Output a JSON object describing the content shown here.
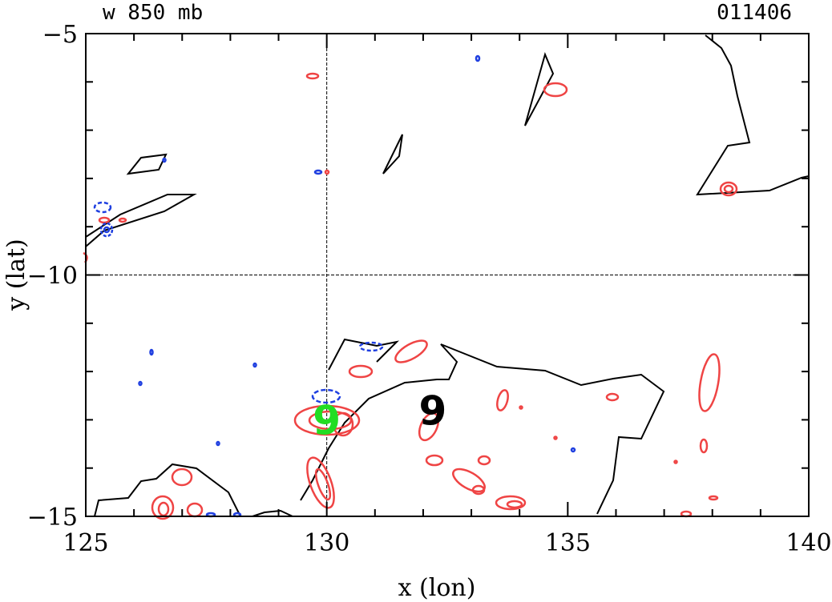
{
  "header": {
    "left_label": "w 850 mb",
    "right_label": "011406"
  },
  "chart_data": {
    "type": "contour",
    "xlabel": "x (lon)",
    "ylabel": "y (lat)",
    "xlim": [
      125,
      140
    ],
    "ylim": [
      -15,
      -5
    ],
    "xticks": [
      125,
      130,
      135,
      140
    ],
    "yticks": [
      -5,
      -10,
      -15
    ],
    "reference_lines": {
      "vertical_x": 130,
      "horizontal_y": -10
    },
    "markers": [
      {
        "symbol": "9",
        "x": 130.0,
        "y": -13.0,
        "color": "#22dd22"
      },
      {
        "symbol": "9",
        "x": 132.2,
        "y": -12.8,
        "color": "#000000"
      }
    ],
    "colors": {
      "land": "#000000",
      "positive": "#ef4444",
      "negative": "#1f3fe0"
    }
  }
}
